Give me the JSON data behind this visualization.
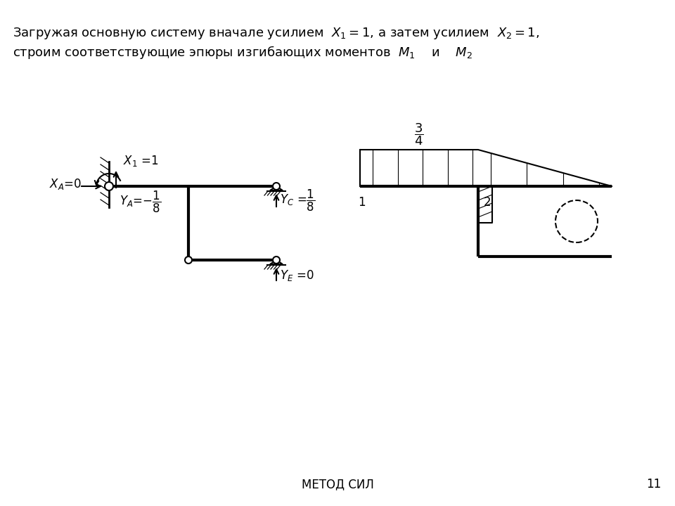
{
  "bg_color": "#ffffff",
  "line_color": "#000000",
  "footer_text": "МЕТОД СИЛ",
  "footer_page": "11",
  "lw_frame": 3.0,
  "lw_moment": 1.5,
  "lw_hatch": 0.8,
  "lw_wall": 1.5,
  "lw_arrow": 1.5
}
